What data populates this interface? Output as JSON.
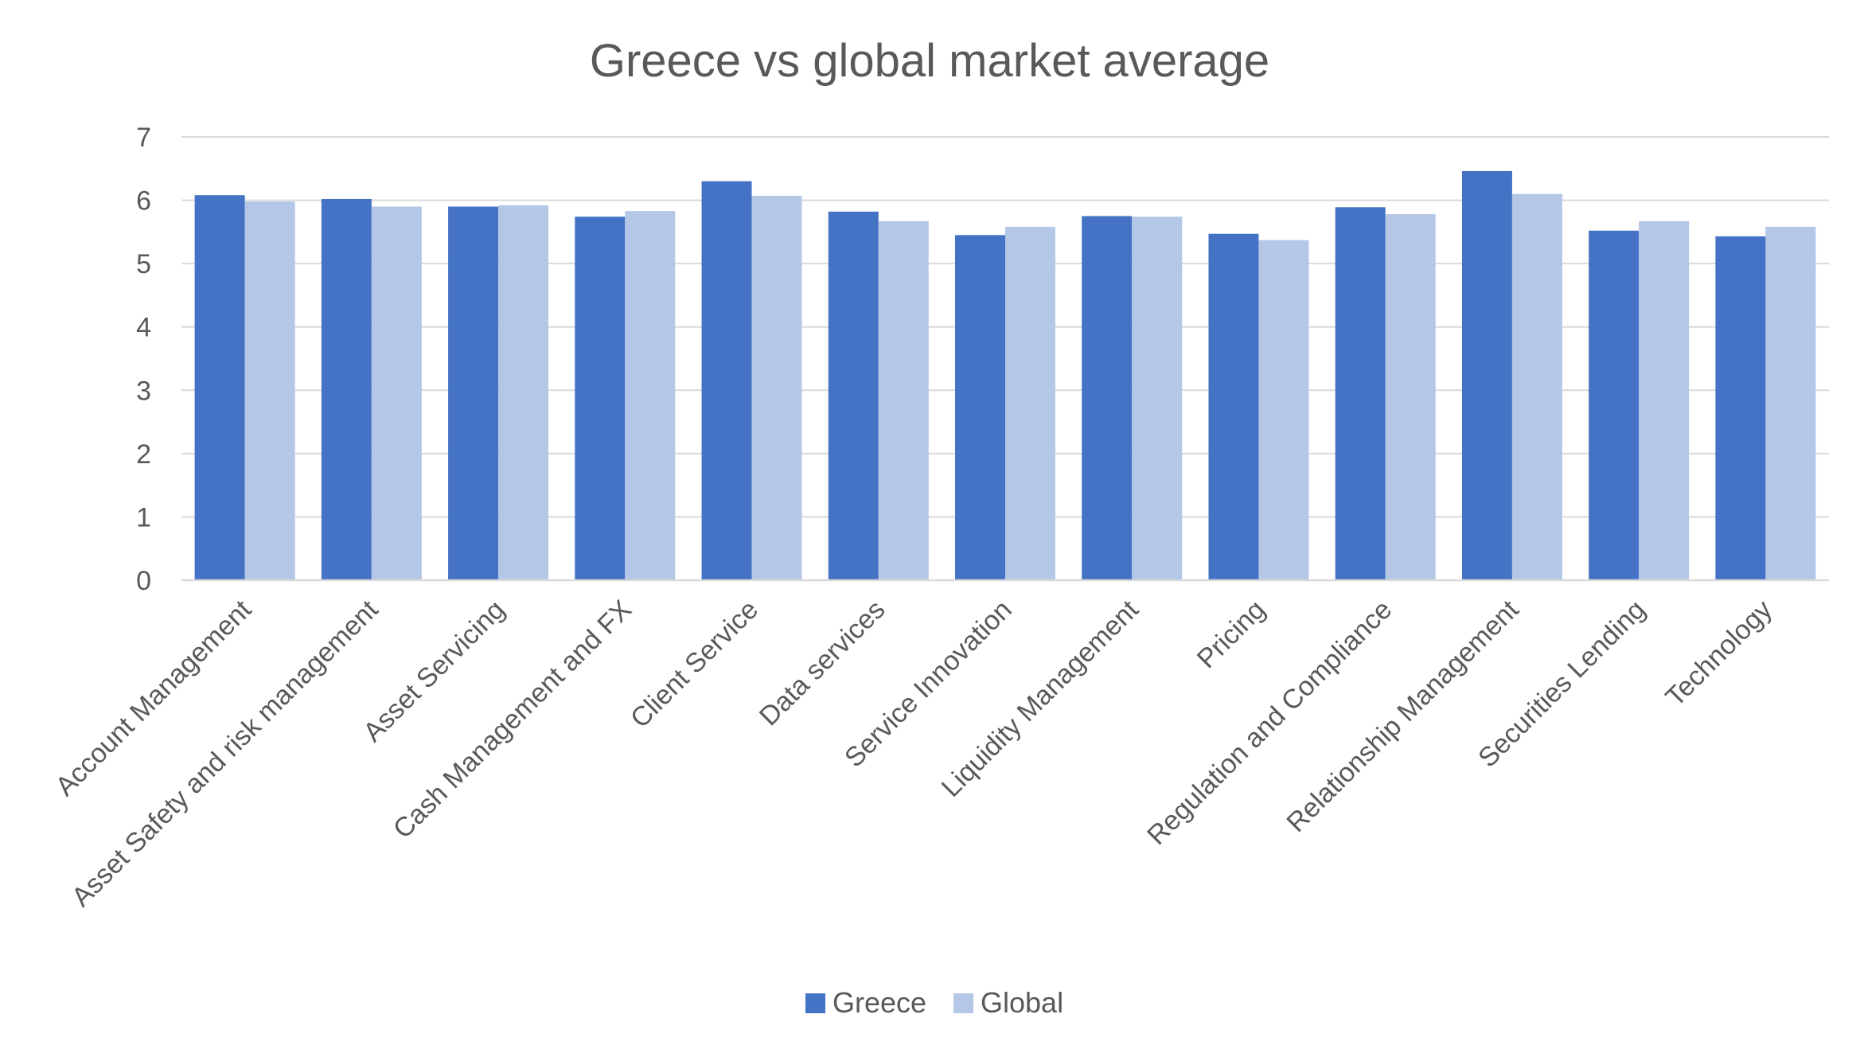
{
  "chart_data": {
    "type": "bar",
    "title": "Greece vs global market average",
    "xlabel": "",
    "ylabel": "",
    "ylim": [
      0,
      7
    ],
    "yticks": [
      "0",
      "1",
      "2",
      "3",
      "4",
      "5",
      "6",
      "7"
    ],
    "grid": true,
    "legend_position": "bottom",
    "categories": [
      "Account Management",
      "Asset Safety and risk management",
      "Asset Servicing",
      "Cash Management and FX",
      "Client Service",
      "Data services",
      "Service Innovation",
      "Liquidity Management",
      "Pricing",
      "Regulation and Compliance",
      "Relationship Management",
      "Securities Lending",
      "Technology"
    ],
    "series": [
      {
        "name": "Greece",
        "color": "#4472c4",
        "values": [
          6.08,
          6.02,
          5.9,
          5.74,
          6.3,
          5.82,
          5.45,
          5.75,
          5.47,
          5.89,
          6.46,
          5.52,
          5.43
        ]
      },
      {
        "name": "Global",
        "color": "#b4c7e7",
        "values": [
          5.98,
          5.9,
          5.92,
          5.83,
          6.07,
          5.67,
          5.58,
          5.74,
          5.37,
          5.78,
          6.1,
          5.67,
          5.58
        ]
      }
    ]
  }
}
